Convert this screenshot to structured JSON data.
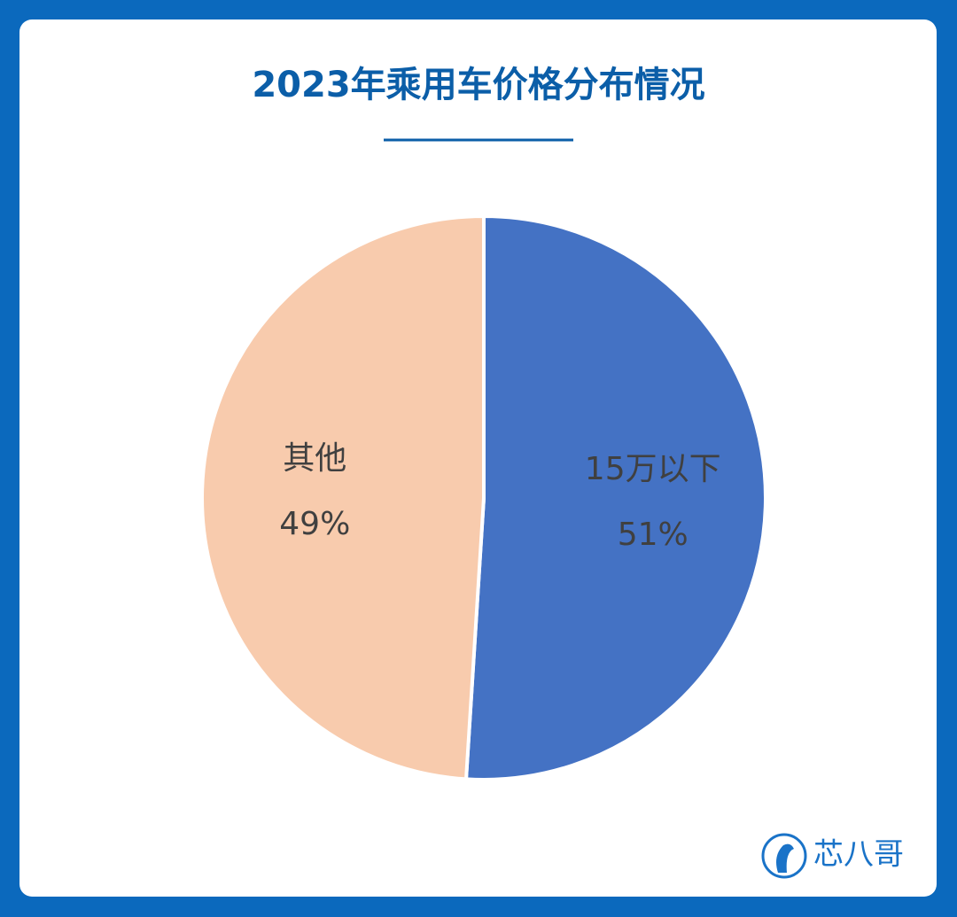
{
  "chart_data": {
    "type": "pie",
    "title": "2023年乘用车价格分布情况",
    "categories": [
      "15万以下",
      "其他"
    ],
    "values": [
      51,
      49
    ],
    "value_labels": [
      "51%",
      "49%"
    ],
    "colors": [
      "#4472c4",
      "#f8cbad"
    ],
    "brand": "芯八哥"
  }
}
